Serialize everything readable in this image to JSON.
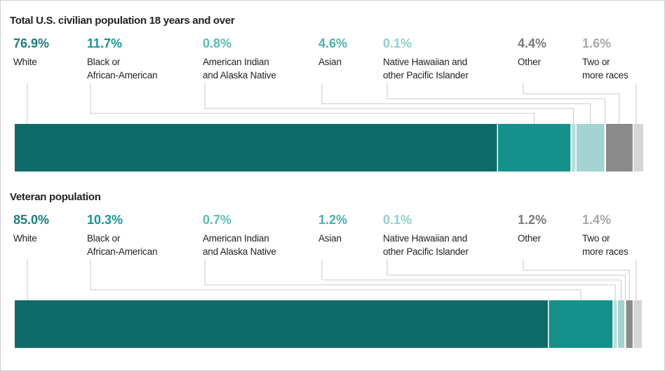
{
  "chart_data": [
    {
      "type": "stacked-bar",
      "title": "Total U.S. civilian population 18 years and over",
      "categories": [
        "White",
        "Black or\nAfrican-American",
        "American Indian\nand Alaska Native",
        "Asian",
        "Native Hawaiian and\nother Pacific Islander",
        "Other",
        "Two or\nmore races"
      ],
      "values": [
        76.9,
        11.7,
        0.8,
        4.6,
        0.1,
        4.4,
        1.6
      ],
      "value_labels": [
        "76.9%",
        "11.7%",
        "0.8%",
        "4.6%",
        "0.1%",
        "4.4%",
        "1.6%"
      ],
      "colors": [
        "#0f6b6a",
        "#16908a",
        "#b9dedd",
        "#a3d3d2",
        "#dcefee",
        "#8a8a8a",
        "#d6d6d6"
      ],
      "label_colors": [
        "#1b7e7d",
        "#19958f",
        "#5bbcb5",
        "#49b0aa",
        "#90d0cb",
        "#7a7a7a",
        "#a8a8a8"
      ],
      "xlim": [
        0,
        100
      ]
    },
    {
      "type": "stacked-bar",
      "title": "Veteran population",
      "categories": [
        "White",
        "Black or\nAfrican-American",
        "American Indian\nand Alaska Native",
        "Asian",
        "Native Hawaiian and\nother Pacific Islander",
        "Other",
        "Two or\nmore races"
      ],
      "values": [
        85.0,
        10.3,
        0.7,
        1.2,
        0.1,
        1.2,
        1.4
      ],
      "value_labels": [
        "85.0%",
        "10.3%",
        "0.7%",
        "1.2%",
        "0.1%",
        "1.2%",
        "1.4%"
      ],
      "colors": [
        "#0f6b6a",
        "#16908a",
        "#b9dedd",
        "#a3d3d2",
        "#dcefee",
        "#8a8a8a",
        "#d6d6d6"
      ],
      "label_colors": [
        "#1b7e7d",
        "#19958f",
        "#5bbcb5",
        "#49b0aa",
        "#90d0cb",
        "#7a7a7a",
        "#a8a8a8"
      ],
      "xlim": [
        0,
        100
      ]
    }
  ]
}
